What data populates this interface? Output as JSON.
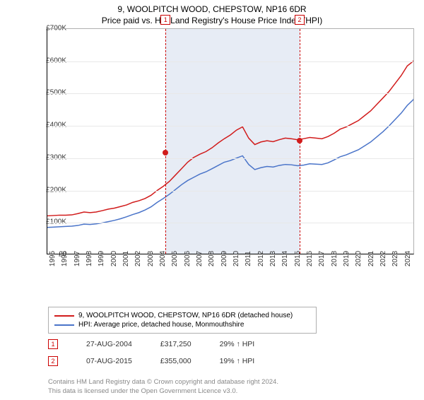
{
  "title": "9, WOOLPITCH WOOD, CHEPSTOW, NP16 6DR",
  "subtitle": "Price paid vs. HM Land Registry's House Price Index (HPI)",
  "chart": {
    "type": "line",
    "background_color": "#ffffff",
    "grid_color": "#e8e8e8",
    "axis_color": "#000000",
    "shade_color": "rgba(120,150,200,0.18)",
    "label_fontsize": 10,
    "x": {
      "min": 1995,
      "max": 2025,
      "tick_step": 1
    },
    "y": {
      "min": 0,
      "max": 700000,
      "tick_step": 100000,
      "format_prefix": "£",
      "format_suffix": "K",
      "format_divisor": 1000
    },
    "x_ticks": [
      1995,
      1996,
      1997,
      1998,
      1999,
      2000,
      2001,
      2002,
      2003,
      2004,
      2005,
      2006,
      2007,
      2008,
      2009,
      2010,
      2011,
      2012,
      2013,
      2014,
      2015,
      2016,
      2017,
      2018,
      2019,
      2020,
      2021,
      2022,
      2023,
      2024
    ],
    "markers": [
      {
        "label": "1",
        "year": 2004.65,
        "price": 317250,
        "dash_color": "#cc0000"
      },
      {
        "label": "2",
        "year": 2015.6,
        "price": 355000,
        "dash_color": "#cc0000"
      }
    ],
    "point_color": "#d11b1b",
    "series": [
      {
        "name": "price-paid",
        "label": "9, WOOLPITCH WOOD, CHEPSTOW, NP16 6DR (detached house)",
        "color": "#d11b1b",
        "line_width": 1.5,
        "y": [
          118,
          119,
          120,
          120,
          121,
          125,
          130,
          128,
          130,
          134,
          139,
          142,
          147,
          152,
          160,
          165,
          172,
          182,
          197,
          210,
          225,
          245,
          265,
          285,
          300,
          310,
          318,
          330,
          345,
          358,
          370,
          385,
          395,
          360,
          340,
          348,
          352,
          349,
          355,
          360,
          358,
          355,
          358,
          362,
          360,
          358,
          365,
          375,
          388,
          395,
          405,
          415,
          430,
          445,
          465,
          485,
          505,
          530,
          555,
          585,
          600,
          625
        ]
      },
      {
        "name": "hpi",
        "label": "HPI: Average price, detached house, Monmouthshire",
        "color": "#4a74c9",
        "line_width": 1.5,
        "y": [
          82,
          83,
          84,
          85,
          86,
          88,
          92,
          91,
          93,
          96,
          100,
          104,
          109,
          115,
          122,
          128,
          136,
          146,
          160,
          172,
          185,
          200,
          215,
          228,
          238,
          248,
          255,
          265,
          275,
          285,
          290,
          298,
          305,
          278,
          262,
          268,
          272,
          270,
          275,
          278,
          277,
          274,
          276,
          280,
          279,
          278,
          283,
          292,
          302,
          308,
          316,
          324,
          336,
          348,
          364,
          380,
          398,
          418,
          438,
          462,
          480,
          520
        ]
      }
    ],
    "series_x_step": 0.5
  },
  "legend": {
    "items": [
      {
        "color": "#d11b1b",
        "label": "9, WOOLPITCH WOOD, CHEPSTOW, NP16 6DR (detached house)"
      },
      {
        "color": "#4a74c9",
        "label": "HPI: Average price, detached house, Monmouthshire"
      }
    ]
  },
  "annotations": [
    {
      "num": "1",
      "date": "27-AUG-2004",
      "price": "£317,250",
      "delta": "29% ↑ HPI"
    },
    {
      "num": "2",
      "date": "07-AUG-2015",
      "price": "£355,000",
      "delta": "19% ↑ HPI"
    }
  ],
  "footer_line1": "Contains HM Land Registry data © Crown copyright and database right 2024.",
  "footer_line2": "This data is licensed under the Open Government Licence v3.0."
}
